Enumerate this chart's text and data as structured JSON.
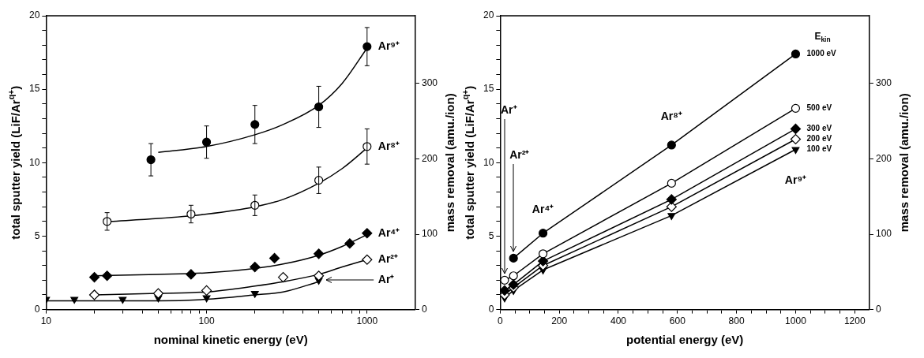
{
  "chart_data": [
    {
      "type": "scatter",
      "xlabel": "nominal kinetic energy (eV)",
      "ylabel": "total sputter yield (LiF/Ar$^{q+}$)",
      "y2label": "mass removal (amu./ion)",
      "log": "x",
      "xlim": [
        10,
        2000
      ],
      "xticks": [
        10,
        {
          "value": 20,
          "label": null
        },
        {
          "value": 30,
          "label": null
        },
        {
          "value": 40,
          "label": null
        },
        {
          "value": 50,
          "label": null
        },
        {
          "value": 60,
          "label": null
        },
        {
          "value": 70,
          "label": null
        },
        {
          "value": 80,
          "label": null
        },
        {
          "value": 90,
          "label": null
        },
        100,
        {
          "value": 200,
          "label": null
        },
        {
          "value": 300,
          "label": null
        },
        {
          "value": 400,
          "label": null
        },
        {
          "value": 500,
          "label": null
        },
        {
          "value": 600,
          "label": null
        },
        {
          "value": 700,
          "label": null
        },
        {
          "value": 800,
          "label": null
        },
        {
          "value": 900,
          "label": null
        },
        1000
      ],
      "ylim": [
        0,
        20
      ],
      "yticks": [
        0,
        {
          "value": 1,
          "label": null
        },
        {
          "value": 2,
          "label": null
        },
        {
          "value": 3,
          "label": null
        },
        {
          "value": 4,
          "label": null
        },
        5,
        {
          "value": 6,
          "label": null
        },
        {
          "value": 7,
          "label": null
        },
        {
          "value": 8,
          "label": null
        },
        {
          "value": 9,
          "label": null
        },
        10,
        {
          "value": 11,
          "label": null
        },
        {
          "value": 12,
          "label": null
        },
        {
          "value": 13,
          "label": null
        },
        {
          "value": 14,
          "label": null
        },
        15,
        {
          "value": 16,
          "label": null
        },
        {
          "value": 17,
          "label": null
        },
        {
          "value": 18,
          "label": null
        },
        {
          "value": 19,
          "label": null
        },
        20
      ],
      "y2lim": [
        0,
        390
      ],
      "y2ticks": [
        0,
        100,
        200,
        300
      ],
      "series": [
        {
          "name": "Ar⁹⁺",
          "marker": "circle",
          "color": "#000000",
          "x": [
            45,
            100,
            200,
            500,
            1000
          ],
          "values": [
            10.2,
            11.4,
            12.6,
            13.8,
            17.9
          ],
          "errors": [
            1.1,
            1.1,
            1.3,
            1.4,
            1.3
          ]
        },
        {
          "name": "Ar⁸⁺",
          "marker": "circle",
          "color": "#ffffff",
          "x": [
            24,
            80,
            200,
            500,
            1000
          ],
          "values": [
            6.0,
            6.5,
            7.1,
            8.8,
            11.1
          ],
          "errors": [
            0.6,
            0.6,
            0.7,
            0.9,
            1.2
          ]
        },
        {
          "name": "Ar⁴⁺",
          "marker": "diamond",
          "color": "#000000",
          "x": [
            20,
            24,
            80,
            200,
            265,
            500,
            780,
            1000
          ],
          "values": [
            2.2,
            2.3,
            2.4,
            2.9,
            3.5,
            3.8,
            4.5,
            5.2
          ]
        },
        {
          "name": "Ar²⁺",
          "marker": "diamond",
          "color": "#ffffff",
          "x": [
            20,
            50,
            100,
            300,
            500,
            1000
          ],
          "values": [
            1.0,
            1.1,
            1.3,
            2.2,
            2.3,
            3.4
          ]
        },
        {
          "name": "Ar⁺",
          "marker": "triangle",
          "color": "#000000",
          "x": [
            10,
            15,
            30,
            50,
            100,
            200,
            500
          ],
          "values": [
            0.7,
            0.7,
            0.7,
            0.8,
            0.8,
            1.1,
            2.0
          ]
        },
        {
          "type": "line",
          "marker": "none",
          "color": "#000000",
          "x": [
            50,
            100,
            200,
            300,
            500,
            700,
            1000
          ],
          "values": [
            10.7,
            11.1,
            11.9,
            12.6,
            13.9,
            15.4,
            17.8
          ]
        },
        {
          "type": "line",
          "marker": "none",
          "color": "#000000",
          "x": [
            25,
            50,
            100,
            200,
            300,
            500,
            700,
            1000
          ],
          "values": [
            6.0,
            6.2,
            6.5,
            7.0,
            7.5,
            8.6,
            9.6,
            11.0
          ]
        },
        {
          "type": "line",
          "marker": "none",
          "color": "#000000",
          "x": [
            20,
            50,
            100,
            200,
            300,
            500,
            700,
            1000
          ],
          "values": [
            2.3,
            2.4,
            2.5,
            2.8,
            3.1,
            3.7,
            4.3,
            5.1
          ]
        },
        {
          "type": "line",
          "marker": "none",
          "color": "#000000",
          "x": [
            20,
            50,
            100,
            200,
            300,
            500,
            700,
            1000
          ],
          "values": [
            1.0,
            1.1,
            1.2,
            1.6,
            1.9,
            2.4,
            2.9,
            3.4
          ]
        },
        {
          "type": "line",
          "marker": "none",
          "color": "#000000",
          "x": [
            10,
            20,
            50,
            100,
            200,
            300,
            500
          ],
          "values": [
            0.6,
            0.6,
            0.6,
            0.7,
            1.0,
            1.2,
            1.9
          ]
        }
      ]
    },
    {
      "type": "line",
      "xlabel": "potential energy (eV)",
      "ylabel": "total sputter yield (LiF/Ar$^{q+}$)",
      "y2label": "mass removal (amu./ion)",
      "xlim": [
        0,
        1250
      ],
      "xticks": [
        0,
        {
          "value": 50,
          "label": null
        },
        {
          "value": 100,
          "label": null
        },
        {
          "value": 150,
          "label": null
        },
        200,
        {
          "value": 250,
          "label": null
        },
        {
          "value": 300,
          "label": null
        },
        {
          "value": 350,
          "label": null
        },
        400,
        {
          "value": 450,
          "label": null
        },
        {
          "value": 500,
          "label": null
        },
        {
          "value": 550,
          "label": null
        },
        600,
        {
          "value": 650,
          "label": null
        },
        {
          "value": 700,
          "label": null
        },
        {
          "value": 750,
          "label": null
        },
        800,
        {
          "value": 850,
          "label": null
        },
        {
          "value": 900,
          "label": null
        },
        {
          "value": 950,
          "label": null
        },
        1000,
        {
          "value": 1050,
          "label": null
        },
        {
          "value": 1100,
          "label": null
        },
        {
          "value": 1150,
          "label": null
        },
        1200
      ],
      "ylim": [
        0,
        20
      ],
      "yticks": [
        0,
        {
          "value": 1,
          "label": null
        },
        {
          "value": 2,
          "label": null
        },
        {
          "value": 3,
          "label": null
        },
        {
          "value": 4,
          "label": null
        },
        5,
        {
          "value": 6,
          "label": null
        },
        {
          "value": 7,
          "label": null
        },
        {
          "value": 8,
          "label": null
        },
        {
          "value": 9,
          "label": null
        },
        10,
        {
          "value": 11,
          "label": null
        },
        {
          "value": 12,
          "label": null
        },
        {
          "value": 13,
          "label": null
        },
        {
          "value": 14,
          "label": null
        },
        15,
        {
          "value": 16,
          "label": null
        },
        {
          "value": 17,
          "label": null
        },
        {
          "value": 18,
          "label": null
        },
        {
          "value": 19,
          "label": null
        },
        20
      ],
      "y2lim": [
        0,
        390
      ],
      "y2ticks": [
        0,
        100,
        200,
        300
      ],
      "legend_title": "E$_{kin}$",
      "series": [
        {
          "name": "1000 eV",
          "marker": "circle",
          "color": "#000000",
          "x": [
            45,
            145,
            580,
            1000
          ],
          "values": [
            3.5,
            5.2,
            11.2,
            17.4
          ]
        },
        {
          "name": "500 eV",
          "marker": "circle",
          "color": "#ffffff",
          "x": [
            15,
            45,
            145,
            580,
            1000
          ],
          "values": [
            2.0,
            2.3,
            3.8,
            8.6,
            13.7
          ]
        },
        {
          "name": "300 eV",
          "marker": "diamond",
          "color": "#000000",
          "x": [
            15,
            45,
            145,
            580,
            1000
          ],
          "values": [
            1.3,
            1.7,
            3.3,
            7.5,
            12.3
          ]
        },
        {
          "name": "200 eV",
          "marker": "diamond",
          "color": "#ffffff",
          "x": [
            15,
            45,
            145,
            580,
            1000
          ],
          "values": [
            1.0,
            1.5,
            3.0,
            7.0,
            11.6
          ]
        },
        {
          "name": "100 eV",
          "marker": "triangle",
          "color": "#000000",
          "x": [
            15,
            45,
            145,
            580,
            1000
          ],
          "values": [
            0.8,
            1.3,
            2.7,
            6.4,
            10.9
          ]
        }
      ],
      "annotations": [
        {
          "text": "Ar⁺",
          "x": 15,
          "y": 2.0
        },
        {
          "text": "Ar²⁺",
          "x": 45,
          "y": 3.5
        },
        "Ar⁴⁺",
        "Ar⁸⁺",
        "Ar⁹⁺"
      ]
    }
  ]
}
